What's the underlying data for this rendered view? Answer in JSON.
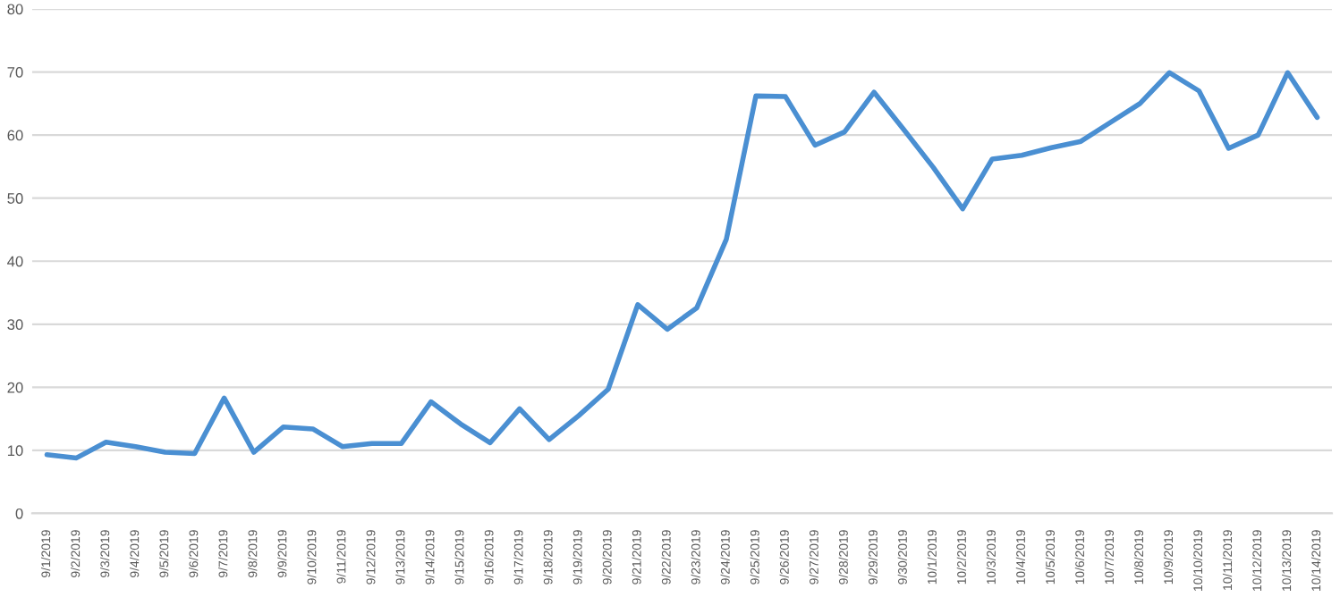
{
  "chart_data": {
    "type": "line",
    "categories": [
      "9/1/2019",
      "9/2/2019",
      "9/3/2019",
      "9/4/2019",
      "9/5/2019",
      "9/6/2019",
      "9/7/2019",
      "9/8/2019",
      "9/9/2019",
      "9/10/2019",
      "9/11/2019",
      "9/12/2019",
      "9/13/2019",
      "9/14/2019",
      "9/15/2019",
      "9/16/2019",
      "9/17/2019",
      "9/18/2019",
      "9/19/2019",
      "9/20/2019",
      "9/21/2019",
      "9/22/2019",
      "9/23/2019",
      "9/24/2019",
      "9/25/2019",
      "9/26/2019",
      "9/27/2019",
      "9/28/2019",
      "9/29/2019",
      "9/30/2019",
      "10/1/2019",
      "10/2/2019",
      "10/3/2019",
      "10/4/2019",
      "10/5/2019",
      "10/6/2019",
      "10/7/2019",
      "10/8/2019",
      "10/9/2019",
      "10/10/2019",
      "10/11/2019",
      "10/12/2019",
      "10/13/2019",
      "10/14/2019"
    ],
    "series": [
      {
        "color": "#4a8fd2",
        "values": [
          9.3,
          8.8,
          11.3,
          10.6,
          9.7,
          9.5,
          18.3,
          9.7,
          13.7,
          13.4,
          10.6,
          11.1,
          11.1,
          17.7,
          14.2,
          11.2,
          16.6,
          11.7,
          15.5,
          19.7,
          33.1,
          29.2,
          32.6,
          43.5,
          66.2,
          66.1,
          58.4,
          60.5,
          66.8,
          60.9,
          54.9,
          48.3,
          56.2,
          56.8,
          58.0,
          59.0,
          62.0,
          65.0,
          69.9,
          67.0,
          57.9,
          60.0,
          69.9,
          62.8
        ]
      }
    ],
    "ylim": [
      0,
      80
    ],
    "yticks": [
      0,
      10,
      20,
      30,
      40,
      50,
      60,
      70,
      80
    ],
    "grid": "y",
    "marker": "none",
    "line_style": "solid"
  }
}
